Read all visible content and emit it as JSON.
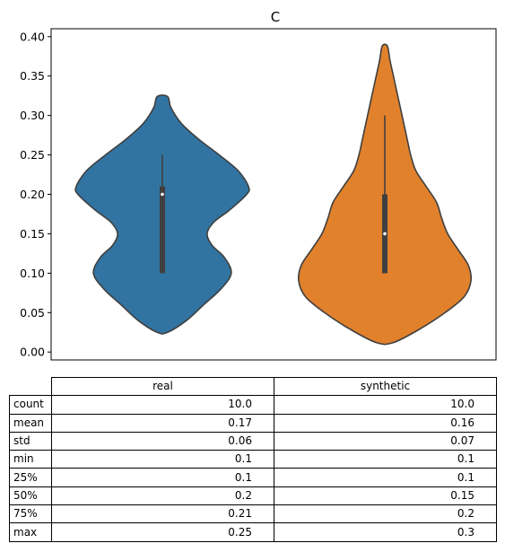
{
  "chart_data": {
    "type": "violin",
    "title": "C",
    "xlabel": "",
    "ylabel": "",
    "ylim": [
      -0.01,
      0.41
    ],
    "yticks": [
      "0.00",
      "0.05",
      "0.10",
      "0.15",
      "0.20",
      "0.25",
      "0.30",
      "0.35",
      "0.40"
    ],
    "grid": false,
    "series": [
      {
        "name": "real",
        "color": "#3274a1",
        "box": {
          "q1": 0.1,
          "median": 0.2,
          "q3": 0.21,
          "whisker_low": 0.1,
          "whisker_high": 0.25
        },
        "density_y": [
          0.025,
          0.04,
          0.06,
          0.08,
          0.1,
          0.12,
          0.135,
          0.15,
          0.165,
          0.18,
          0.2,
          0.21,
          0.23,
          0.25,
          0.27,
          0.29,
          0.31,
          0.324
        ],
        "density_w": [
          0.06,
          0.28,
          0.48,
          0.68,
          0.8,
          0.72,
          0.58,
          0.52,
          0.6,
          0.78,
          0.98,
          1.0,
          0.88,
          0.66,
          0.42,
          0.22,
          0.1,
          0.06
        ]
      },
      {
        "name": "synthetic",
        "color": "#e1812c",
        "box": {
          "q1": 0.1,
          "median": 0.15,
          "q3": 0.2,
          "whisker_low": 0.1,
          "whisker_high": 0.3
        },
        "density_y": [
          0.012,
          0.03,
          0.05,
          0.07,
          0.09,
          0.11,
          0.13,
          0.15,
          0.17,
          0.19,
          0.21,
          0.23,
          0.25,
          0.27,
          0.29,
          0.31,
          0.33,
          0.35,
          0.37,
          0.388
        ],
        "density_w": [
          0.1,
          0.42,
          0.7,
          0.92,
          1.0,
          0.97,
          0.85,
          0.73,
          0.66,
          0.6,
          0.48,
          0.36,
          0.3,
          0.26,
          0.22,
          0.18,
          0.14,
          0.1,
          0.06,
          0.03
        ]
      }
    ]
  },
  "table": {
    "columns": [
      "real",
      "synthetic"
    ],
    "rows": [
      {
        "label": "count",
        "values": [
          "10.0",
          "10.0"
        ]
      },
      {
        "label": "mean",
        "values": [
          "0.17",
          "0.16"
        ]
      },
      {
        "label": "std",
        "values": [
          "0.06",
          "0.07"
        ]
      },
      {
        "label": "min",
        "values": [
          "0.1",
          "0.1"
        ]
      },
      {
        "label": "25%",
        "values": [
          "0.1",
          "0.1"
        ]
      },
      {
        "label": "50%",
        "values": [
          "0.2",
          "0.15"
        ]
      },
      {
        "label": "75%",
        "values": [
          "0.21",
          "0.2"
        ]
      },
      {
        "label": "max",
        "values": [
          "0.25",
          "0.3"
        ]
      }
    ]
  }
}
